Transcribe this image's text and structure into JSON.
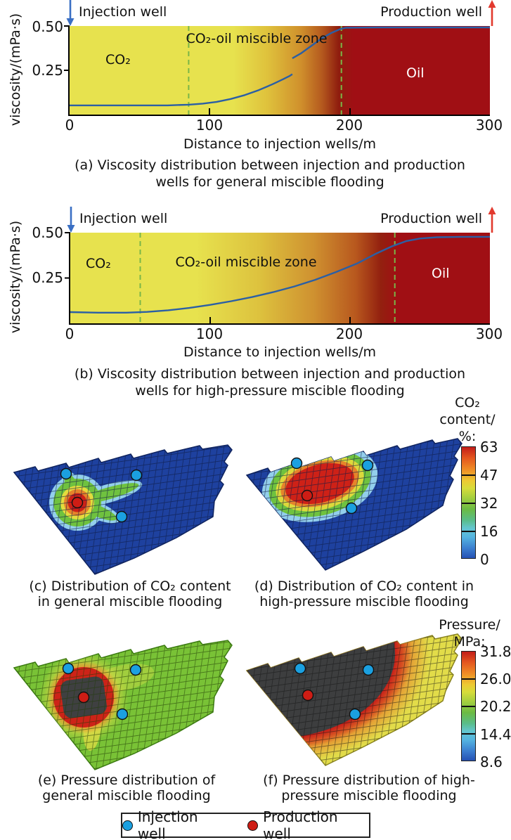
{
  "panel_a": {
    "injection_well": "Injection well",
    "production_well": "Production well",
    "ylabel": "viscosity/(mPa·s)",
    "ytick_050": "0.50",
    "ytick_025": "0.25",
    "xticks": [
      "0",
      "100",
      "200",
      "300"
    ],
    "xlabel": "Distance to injection wells/m",
    "zone_co2": "CO₂",
    "zone_miscible": "CO₂-oil miscible zone",
    "zone_oil": "Oil",
    "caption_line1": "(a) Viscosity distribution between injection and production",
    "caption_line2": "wells for general miscible flooding"
  },
  "panel_b": {
    "injection_well": "Injection well",
    "production_well": "Production well",
    "ylabel": "viscosity/(mPa·s)",
    "ytick_050": "0.50",
    "ytick_025": "0.25",
    "xticks": [
      "0",
      "100",
      "200",
      "300"
    ],
    "xlabel": "Distance to injection wells/m",
    "zone_co2": "CO₂",
    "zone_miscible": "CO₂-oil miscible zone",
    "zone_oil": "Oil",
    "caption_line1": "(b) Viscosity distribution between injection and production",
    "caption_line2": "wells for high-pressure miscible flooding"
  },
  "panel_c": {
    "caption_line1": "(c) Distribution of CO₂ content",
    "caption_line2": "in general miscible flooding"
  },
  "panel_d": {
    "caption_line1": "(d) Distribution of CO₂ content in",
    "caption_line2": "high-pressure miscible flooding"
  },
  "panel_e": {
    "caption_line1": "(e) Pressure distribution of",
    "caption_line2": "general miscible flooding"
  },
  "panel_f": {
    "caption_line1": "(f) Pressure distribution of high-",
    "caption_line2": "pressure miscible flooding"
  },
  "colorbar_co2": {
    "title_line1": "CO₂",
    "title_line2": "content/",
    "title_line3": "%:",
    "ticks": [
      "63",
      "47",
      "32",
      "16",
      "0"
    ]
  },
  "colorbar_pressure": {
    "title_line1": "Pressure/",
    "title_line2": "MPa:",
    "ticks": [
      "31.8",
      "26.0",
      "20.2",
      "14.4",
      "8.6"
    ]
  },
  "legend": {
    "injection": "Injection well",
    "production": "Production well"
  },
  "colors": {
    "co2_yellow": "#e7e24e",
    "oil_dark_red": "#a00f14",
    "curve_blue": "#2b5fa5",
    "dashed_green": "#7ab648",
    "injection_arrow_blue": "#3a6fc4",
    "production_arrow_red": "#e23a2e",
    "injection_dot_blue": "#1ba0e0",
    "production_dot_red": "#ce1d15",
    "mesh_blue": "#1e419f",
    "mesh_green": "#79c236",
    "mesh_gray": "#3d3e3f"
  },
  "chart_data": [
    {
      "panel": "a",
      "type": "line",
      "title": "(a) Viscosity distribution between injection and production wells for general miscible flooding",
      "xlabel": "Distance to injection wells/m",
      "ylabel": "viscosity/(mPa·s)",
      "xlim": [
        0,
        300
      ],
      "ylim": [
        0,
        0.5
      ],
      "xticks": [
        0,
        100,
        200,
        300
      ],
      "yticks": [
        0.25,
        0.5
      ],
      "zones": [
        {
          "label": "CO₂",
          "range": [
            0,
            120
          ]
        },
        {
          "label": "CO₂-oil miscible zone",
          "range": [
            120,
            200
          ]
        },
        {
          "label": "Oil",
          "range": [
            200,
            300
          ]
        }
      ],
      "zone_boundaries_dashed": [
        85,
        194
      ],
      "series": [
        {
          "name": "viscosity CO₂ side",
          "points": [
            [
              0,
              0.052
            ],
            [
              40,
              0.052
            ],
            [
              70,
              0.052
            ],
            [
              85,
              0.056
            ],
            [
              95,
              0.062
            ],
            [
              105,
              0.072
            ],
            [
              115,
              0.088
            ],
            [
              125,
              0.11
            ],
            [
              135,
              0.138
            ],
            [
              145,
              0.172
            ],
            [
              152,
              0.198
            ],
            [
              157,
              0.218
            ],
            [
              159,
              0.228
            ]
          ]
        },
        {
          "name": "viscosity oil side",
          "points": [
            [
              159,
              0.318
            ],
            [
              165,
              0.345
            ],
            [
              172,
              0.385
            ],
            [
              180,
              0.43
            ],
            [
              187,
              0.462
            ],
            [
              193,
              0.482
            ],
            [
              197,
              0.49
            ],
            [
              220,
              0.492
            ],
            [
              300,
              0.492
            ]
          ]
        }
      ],
      "annotations": [
        "Injection well",
        "Production well"
      ]
    },
    {
      "panel": "b",
      "type": "line",
      "title": "(b) Viscosity distribution between injection and production wells for high-pressure miscible flooding",
      "xlabel": "Distance to injection wells/m",
      "ylabel": "viscosity/(mPa·s)",
      "xlim": [
        0,
        300
      ],
      "ylim": [
        0,
        0.5
      ],
      "xticks": [
        0,
        100,
        200,
        300
      ],
      "yticks": [
        0.25,
        0.5
      ],
      "zones": [
        {
          "label": "CO₂",
          "range": [
            0,
            50
          ]
        },
        {
          "label": "CO₂-oil miscible zone",
          "range": [
            50,
            232
          ]
        },
        {
          "label": "Oil",
          "range": [
            232,
            300
          ]
        }
      ],
      "zone_boundaries_dashed": [
        50,
        232
      ],
      "series": [
        {
          "name": "viscosity",
          "points": [
            [
              0,
              0.062
            ],
            [
              20,
              0.059
            ],
            [
              40,
              0.059
            ],
            [
              55,
              0.063
            ],
            [
              70,
              0.072
            ],
            [
              85,
              0.085
            ],
            [
              100,
              0.102
            ],
            [
              115,
              0.122
            ],
            [
              130,
              0.145
            ],
            [
              145,
              0.172
            ],
            [
              160,
              0.203
            ],
            [
              175,
              0.24
            ],
            [
              190,
              0.283
            ],
            [
              205,
              0.33
            ],
            [
              218,
              0.382
            ],
            [
              230,
              0.425
            ],
            [
              240,
              0.453
            ],
            [
              250,
              0.468
            ],
            [
              262,
              0.475
            ],
            [
              280,
              0.477
            ],
            [
              300,
              0.477
            ]
          ]
        }
      ],
      "annotations": [
        "Injection well",
        "Production well"
      ]
    },
    {
      "panel": "c",
      "type": "heatmap",
      "title": "(c) Distribution of CO₂ content in general miscible flooding",
      "colorbar": {
        "label": "CO₂ content/%",
        "ticks": [
          63,
          47,
          32,
          16,
          0
        ]
      },
      "background_value": 0,
      "hotspot": {
        "peak_value": 63,
        "shape": "small star-shaped plume with arms around production well"
      },
      "wells": {
        "injection": [
          [
            0.26,
            0.29
          ],
          [
            0.55,
            0.3
          ],
          [
            0.49,
            0.58
          ]
        ],
        "production": [
          [
            0.3,
            0.49
          ]
        ]
      }
    },
    {
      "panel": "d",
      "type": "heatmap",
      "title": "(d) Distribution of CO₂ content in high-pressure miscible flooding",
      "colorbar": {
        "label": "CO₂ content/%",
        "ticks": [
          63,
          47,
          32,
          16,
          0
        ]
      },
      "background_value": 0,
      "hotspot": {
        "peak_value": 63,
        "shape": "large smooth elliptical plume around production well"
      },
      "wells": {
        "injection": [
          [
            0.23,
            0.28
          ],
          [
            0.54,
            0.29
          ],
          [
            0.47,
            0.57
          ]
        ],
        "production": [
          [
            0.28,
            0.49
          ]
        ]
      }
    },
    {
      "panel": "e",
      "type": "heatmap",
      "title": "(e) Pressure distribution of general miscible flooding",
      "colorbar": {
        "label": "Pressure/MPa",
        "ticks": [
          31.8,
          26.0,
          20.2,
          14.4,
          8.6
        ]
      },
      "background_value": 21,
      "hotspot": {
        "peak_value": "out-of-scale (gray core)",
        "shape": "gray core with red-orange-yellow rings around production well"
      },
      "wells": {
        "injection": [
          [
            0.26,
            0.29
          ],
          [
            0.55,
            0.3
          ],
          [
            0.49,
            0.59
          ]
        ],
        "production": [
          [
            0.33,
            0.48
          ]
        ]
      }
    },
    {
      "panel": "f",
      "type": "heatmap",
      "title": "(f) Pressure distribution of high-pressure miscible flooding",
      "colorbar": {
        "label": "Pressure/MPa",
        "ticks": [
          31.8,
          26.0,
          20.2,
          14.4,
          8.6
        ]
      },
      "background_value": "out-of-scale gray over most of field",
      "hotspot": {
        "peak_value": 31.8,
        "shape": "red-orange-yellow bands toward right and bottom edges"
      },
      "wells": {
        "injection": [
          [
            0.25,
            0.34
          ],
          [
            0.54,
            0.35
          ],
          [
            0.48,
            0.64
          ]
        ],
        "production": [
          [
            0.28,
            0.52
          ]
        ]
      }
    }
  ]
}
